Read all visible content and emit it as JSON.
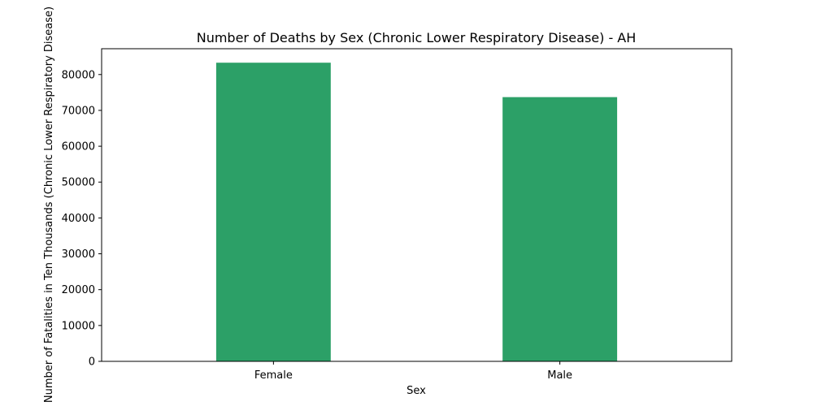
{
  "chart_data": {
    "type": "bar",
    "title": "Number of Deaths by Sex (Chronic Lower Respiratory Disease) - AH",
    "xlabel": "Sex",
    "ylabel": "Number of Fatalities in Ten Thousands (Chronic Lower Respiratory Disease)",
    "categories": [
      "Female",
      "Male"
    ],
    "values": [
      83300,
      73700
    ],
    "ylim": [
      0,
      87200
    ],
    "yticks": [
      0,
      10000,
      20000,
      30000,
      40000,
      50000,
      60000,
      70000,
      80000
    ],
    "grid": false,
    "bar_color": "#2ca067"
  }
}
